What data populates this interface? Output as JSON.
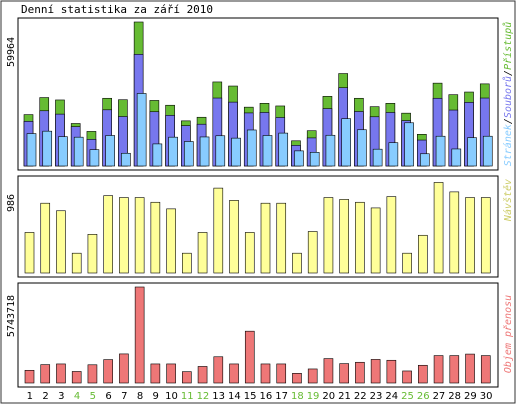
{
  "title": "Denní statistika za září 2010",
  "colors": {
    "hits": "#66bb33",
    "files": "#7777ee",
    "pages": "#88ccff",
    "visits": "#ffff99",
    "traffic": "#ee7777",
    "weekend_label": "#66bb33",
    "weekday_label": "#000000"
  },
  "legend": {
    "pages": "Stránek",
    "sep1": "/",
    "files": "Souborů",
    "sep2": "/",
    "hits": "Přístupů",
    "visits": "Návštěv",
    "traffic": "Objem přenosu"
  },
  "chart_data": [
    {
      "type": "bar",
      "panel": "hits-files-pages",
      "ymax_label": "59964",
      "categories": [
        "1",
        "2",
        "3",
        "4",
        "5",
        "6",
        "7",
        "8",
        "9",
        "10",
        "11",
        "12",
        "13",
        "14",
        "15",
        "16",
        "17",
        "18",
        "19",
        "20",
        "21",
        "22",
        "23",
        "24",
        "25",
        "26",
        "27",
        "28",
        "29",
        "30"
      ],
      "weekend": [
        false,
        false,
        false,
        true,
        true,
        false,
        false,
        false,
        false,
        false,
        true,
        true,
        false,
        false,
        false,
        false,
        false,
        true,
        true,
        false,
        false,
        false,
        false,
        false,
        true,
        true,
        false,
        false,
        false,
        false
      ],
      "series": [
        {
          "name": "Přístupů",
          "values": [
            21400,
            28500,
            27500,
            17700,
            14400,
            28200,
            27600,
            59964,
            27300,
            25300,
            18800,
            20300,
            35000,
            33300,
            24500,
            26100,
            25000,
            10500,
            14700,
            29000,
            38500,
            28200,
            24700,
            26100,
            22000,
            13200,
            34500,
            29700,
            30800,
            34200
          ]
        },
        {
          "name": "Souborů",
          "values": [
            18600,
            23000,
            21600,
            16400,
            11100,
            23400,
            20600,
            46500,
            22600,
            21100,
            16800,
            17400,
            28300,
            26600,
            22100,
            22300,
            20200,
            8600,
            11700,
            23900,
            32600,
            22700,
            20500,
            22300,
            18900,
            10800,
            28200,
            23300,
            26500,
            28300
          ]
        },
        {
          "name": "Stránek",
          "values": [
            13500,
            14500,
            12200,
            12000,
            6800,
            12700,
            5300,
            30200,
            9200,
            12000,
            10200,
            12100,
            12600,
            11600,
            15000,
            12700,
            13700,
            6300,
            5700,
            12800,
            19700,
            15100,
            7000,
            9700,
            18000,
            5100,
            12400,
            7100,
            11800,
            12400
          ]
        }
      ]
    },
    {
      "type": "bar",
      "panel": "visits",
      "ymax_label": "986",
      "categories": [
        "1",
        "2",
        "3",
        "4",
        "5",
        "6",
        "7",
        "8",
        "9",
        "10",
        "11",
        "12",
        "13",
        "14",
        "15",
        "16",
        "17",
        "18",
        "19",
        "20",
        "21",
        "22",
        "23",
        "24",
        "25",
        "26",
        "27",
        "28",
        "29",
        "30"
      ],
      "series": [
        {
          "name": "Návštěv",
          "values": [
            430,
            740,
            660,
            210,
            410,
            820,
            800,
            800,
            750,
            680,
            210,
            430,
            900,
            770,
            430,
            740,
            740,
            210,
            440,
            800,
            780,
            750,
            690,
            810,
            210,
            400,
            960,
            860,
            800,
            800
          ]
        }
      ]
    },
    {
      "type": "bar",
      "panel": "traffic",
      "ymax_label": "5743718",
      "categories": [
        "1",
        "2",
        "3",
        "4",
        "5",
        "6",
        "7",
        "8",
        "9",
        "10",
        "11",
        "12",
        "13",
        "14",
        "15",
        "16",
        "17",
        "18",
        "19",
        "20",
        "21",
        "22",
        "23",
        "24",
        "25",
        "26",
        "27",
        "28",
        "29",
        "30"
      ],
      "series": [
        {
          "name": "Objem přenosu",
          "values": [
            760000,
            1100000,
            1140000,
            690000,
            1090000,
            1400000,
            1740000,
            5743718,
            1140000,
            1140000,
            680000,
            990000,
            1570000,
            1140000,
            3100000,
            1140000,
            1140000,
            580000,
            840000,
            1460000,
            1160000,
            1240000,
            1410000,
            1360000,
            720000,
            1060000,
            1640000,
            1640000,
            1730000,
            1640000
          ]
        }
      ]
    }
  ]
}
